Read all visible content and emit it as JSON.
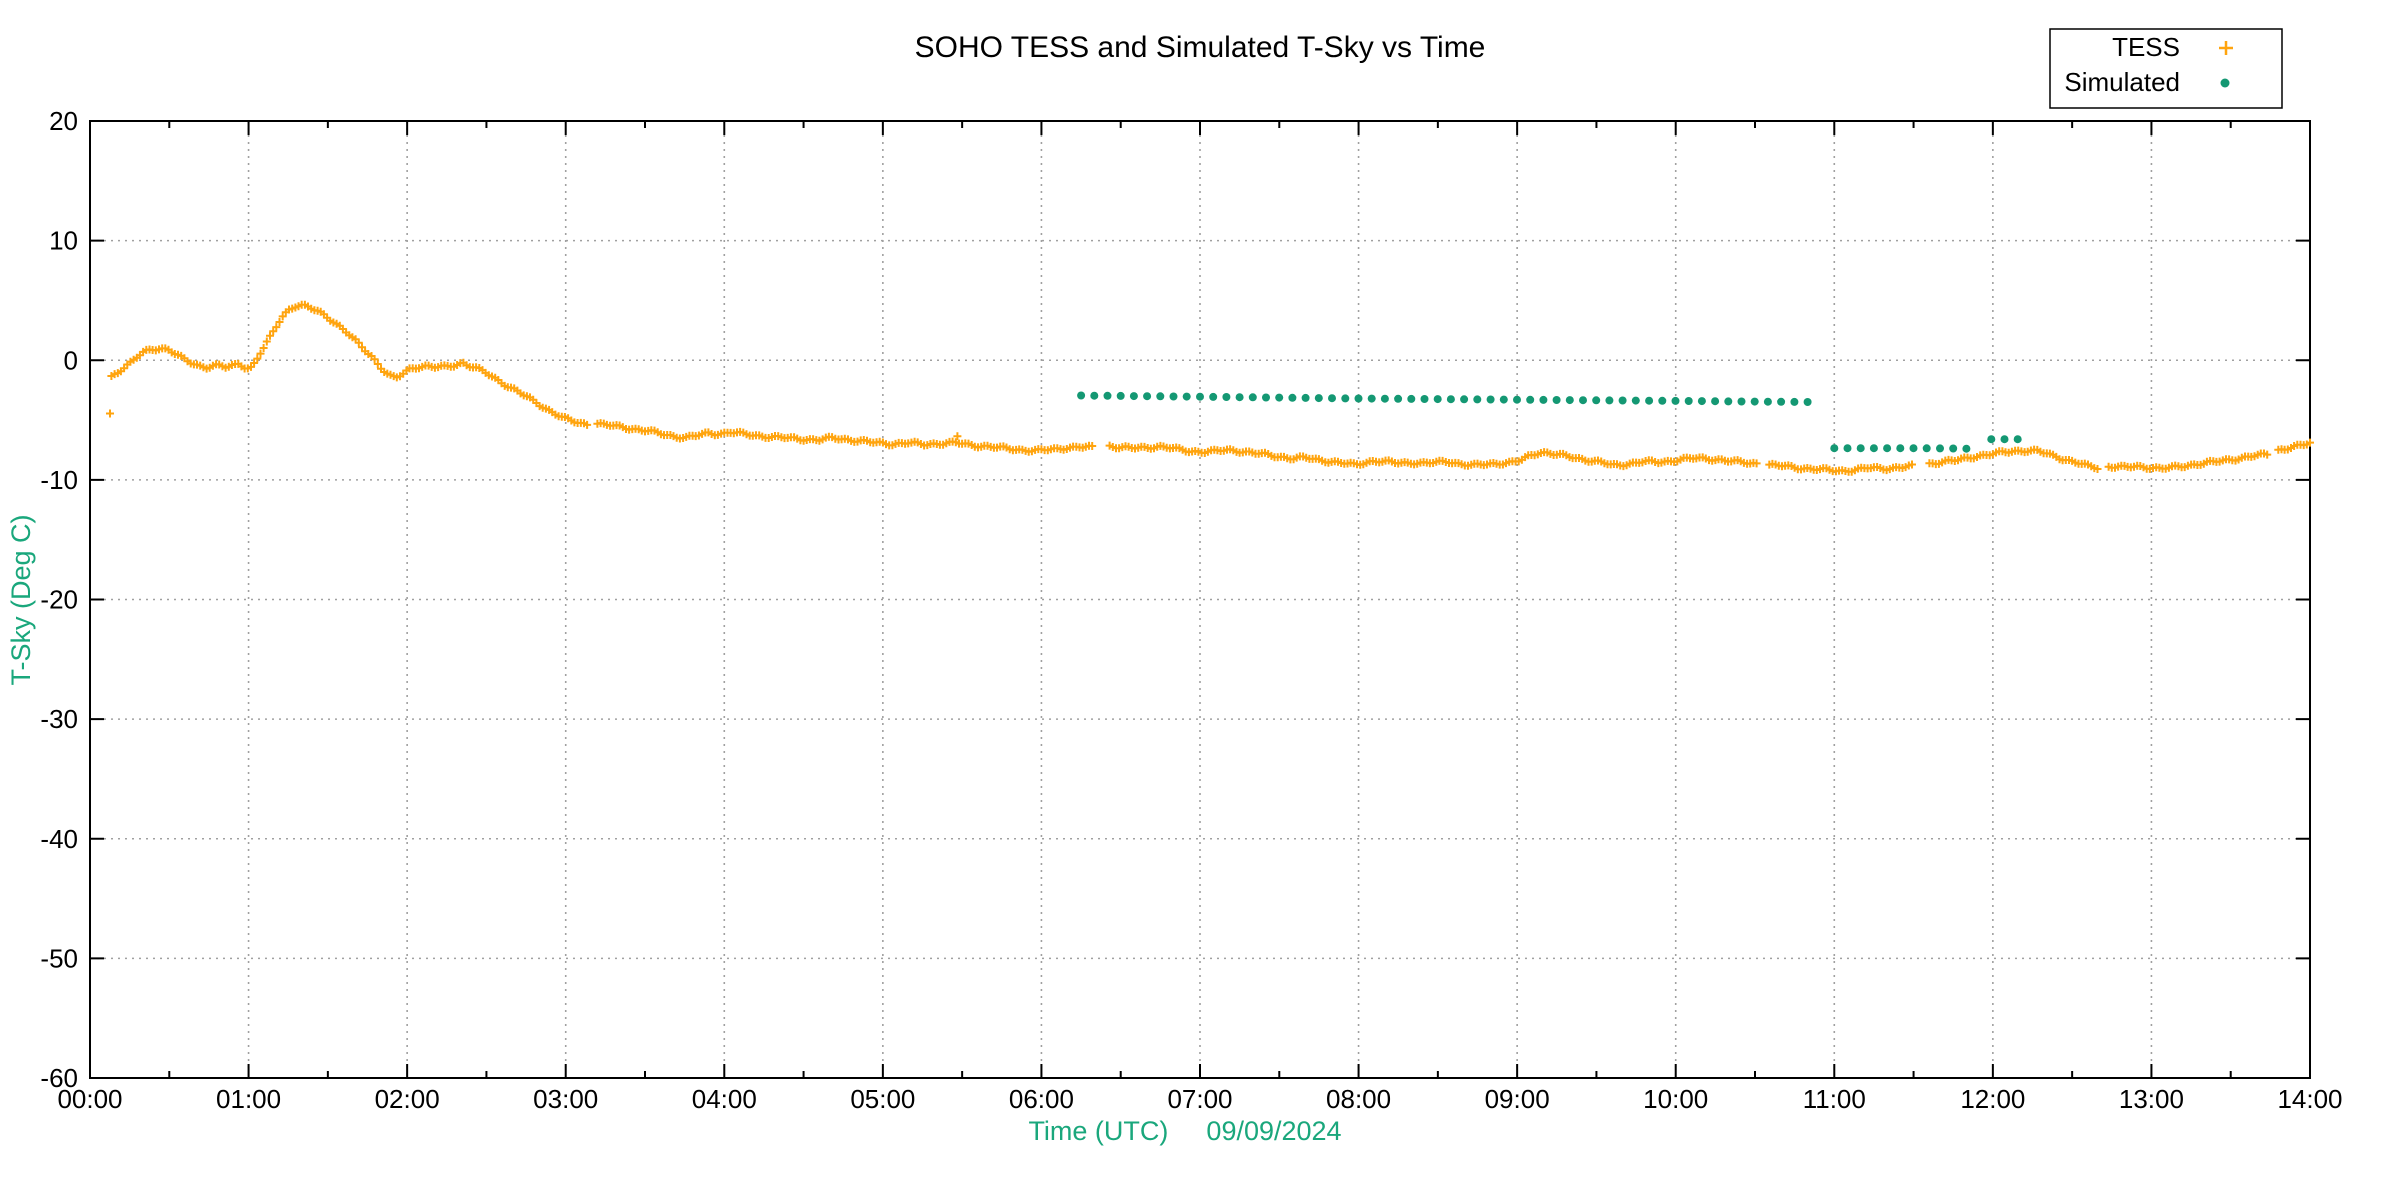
{
  "chart_data": {
    "type": "scatter",
    "title": "SOHO TESS and Simulated T-Sky vs Time",
    "xlabel": "Time (UTC)",
    "xlabel_date": "09/09/2024",
    "ylabel": "T-Sky (Deg C)",
    "xlim_hours": [
      0,
      14
    ],
    "ylim": [
      -60,
      20
    ],
    "x_tick_labels": [
      "00:00",
      "01:00",
      "02:00",
      "03:00",
      "04:00",
      "05:00",
      "06:00",
      "07:00",
      "08:00",
      "09:00",
      "10:00",
      "11:00",
      "12:00",
      "13:00",
      "14:00"
    ],
    "y_ticks": [
      20,
      10,
      0,
      -10,
      -20,
      -30,
      -40,
      -50,
      -60
    ],
    "x_minor_interval_hours": 0.5,
    "grid": true,
    "legend_position": "top-right",
    "colors": {
      "tess": "#ffa40e",
      "simulated": "#149873",
      "axis_label": "#1aa77c",
      "grid": "#a0a0a0",
      "border": "#000000"
    },
    "series": [
      {
        "name": "TESS",
        "marker": "plus",
        "color": "#ffa40e",
        "cadence_hours": 0.02,
        "outliers": [
          [
            0.126,
            -4.45
          ],
          [
            5.47,
            -6.35
          ]
        ],
        "segments": [
          [
            [
              0.135,
              -1.35
            ],
            [
              0.16,
              -1.1
            ],
            [
              0.19,
              -0.85
            ],
            [
              0.22,
              -0.6
            ],
            [
              0.26,
              -0.2
            ],
            [
              0.3,
              0.3
            ],
            [
              0.34,
              0.7
            ],
            [
              0.39,
              0.95
            ],
            [
              0.44,
              1.0
            ],
            [
              0.49,
              0.9
            ],
            [
              0.54,
              0.5
            ],
            [
              0.59,
              0.1
            ],
            [
              0.64,
              -0.2
            ],
            [
              0.69,
              -0.45
            ],
            [
              0.73,
              -0.6
            ],
            [
              0.77,
              -0.5
            ],
            [
              0.81,
              -0.45
            ],
            [
              0.86,
              -0.6
            ],
            [
              0.9,
              -0.45
            ],
            [
              0.94,
              -0.25
            ],
            [
              0.98,
              -0.6
            ],
            [
              1.01,
              -0.7
            ],
            [
              1.04,
              -0.2
            ],
            [
              1.07,
              0.5
            ],
            [
              1.1,
              1.1
            ],
            [
              1.13,
              1.8
            ],
            [
              1.16,
              2.5
            ],
            [
              1.19,
              3.2
            ],
            [
              1.22,
              3.8
            ],
            [
              1.26,
              4.3
            ],
            [
              1.3,
              4.55
            ],
            [
              1.34,
              4.55
            ],
            [
              1.38,
              4.4
            ],
            [
              1.42,
              4.2
            ],
            [
              1.46,
              3.95
            ],
            [
              1.5,
              3.6
            ],
            [
              1.54,
              3.2
            ],
            [
              1.58,
              2.75
            ],
            [
              1.62,
              2.3
            ],
            [
              1.66,
              1.8
            ],
            [
              1.7,
              1.3
            ],
            [
              1.74,
              0.8
            ],
            [
              1.78,
              0.3
            ],
            [
              1.81,
              -0.2
            ],
            [
              1.84,
              -0.7
            ],
            [
              1.87,
              -1.1
            ],
            [
              1.9,
              -1.4
            ],
            [
              1.93,
              -1.5
            ],
            [
              1.96,
              -1.25
            ],
            [
              1.99,
              -0.95
            ],
            [
              2.02,
              -0.7
            ],
            [
              2.06,
              -0.55
            ],
            [
              2.12,
              -0.5
            ],
            [
              2.18,
              -0.6
            ],
            [
              2.24,
              -0.55
            ],
            [
              2.3,
              -0.4
            ],
            [
              2.35,
              -0.2
            ],
            [
              2.39,
              -0.45
            ],
            [
              2.44,
              -0.7
            ],
            [
              2.49,
              -1.0
            ],
            [
              2.54,
              -1.4
            ],
            [
              2.59,
              -1.8
            ],
            [
              2.64,
              -2.2
            ],
            [
              2.69,
              -2.55
            ],
            [
              2.74,
              -2.95
            ],
            [
              2.79,
              -3.35
            ],
            [
              2.84,
              -3.75
            ],
            [
              2.89,
              -4.15
            ],
            [
              2.94,
              -4.5
            ],
            [
              2.99,
              -4.85
            ],
            [
              3.04,
              -5.1
            ],
            [
              3.09,
              -5.25
            ],
            [
              3.14,
              -5.4
            ]
          ],
          [
            [
              3.2,
              -5.3
            ],
            [
              3.28,
              -5.45
            ],
            [
              3.36,
              -5.6
            ],
            [
              3.44,
              -5.75
            ],
            [
              3.52,
              -5.9
            ],
            [
              3.6,
              -6.15
            ],
            [
              3.68,
              -6.35
            ],
            [
              3.76,
              -6.45
            ],
            [
              3.83,
              -6.3
            ],
            [
              3.9,
              -6.1
            ],
            [
              3.97,
              -6.15
            ],
            [
              4.04,
              -6.0
            ],
            [
              4.11,
              -6.15
            ],
            [
              4.2,
              -6.3
            ],
            [
              4.3,
              -6.4
            ],
            [
              4.4,
              -6.5
            ],
            [
              4.5,
              -6.6
            ],
            [
              4.6,
              -6.65
            ],
            [
              4.68,
              -6.5
            ],
            [
              4.76,
              -6.6
            ],
            [
              4.86,
              -6.75
            ],
            [
              4.96,
              -6.9
            ],
            [
              5.06,
              -7.0
            ],
            [
              5.16,
              -6.9
            ],
            [
              5.26,
              -7.05
            ],
            [
              5.36,
              -6.95
            ],
            [
              5.46,
              -6.9
            ],
            [
              5.56,
              -7.1
            ],
            [
              5.66,
              -7.2
            ],
            [
              5.76,
              -7.35
            ],
            [
              5.88,
              -7.5
            ],
            [
              5.98,
              -7.55
            ],
            [
              6.08,
              -7.45
            ],
            [
              6.16,
              -7.3
            ],
            [
              6.24,
              -7.25
            ],
            [
              6.32,
              -7.3
            ]
          ],
          [
            [
              6.43,
              -7.15
            ],
            [
              6.5,
              -7.3
            ],
            [
              6.58,
              -7.35
            ],
            [
              6.66,
              -7.3
            ],
            [
              6.74,
              -7.2
            ],
            [
              6.8,
              -7.3
            ],
            [
              6.86,
              -7.45
            ],
            [
              6.94,
              -7.6
            ],
            [
              7.02,
              -7.65
            ],
            [
              7.1,
              -7.6
            ],
            [
              7.18,
              -7.5
            ],
            [
              7.26,
              -7.6
            ],
            [
              7.34,
              -7.75
            ],
            [
              7.42,
              -7.9
            ],
            [
              7.5,
              -8.05
            ],
            [
              7.58,
              -8.2
            ],
            [
              7.66,
              -8.15
            ],
            [
              7.74,
              -8.3
            ],
            [
              7.82,
              -8.45
            ],
            [
              7.9,
              -8.6
            ],
            [
              7.98,
              -8.75
            ],
            [
              8.04,
              -8.55
            ],
            [
              8.1,
              -8.4
            ],
            [
              8.18,
              -8.5
            ],
            [
              8.26,
              -8.6
            ],
            [
              8.34,
              -8.55
            ],
            [
              8.42,
              -8.6
            ],
            [
              8.5,
              -8.55
            ],
            [
              8.56,
              -8.45
            ],
            [
              8.64,
              -8.65
            ],
            [
              8.72,
              -8.8
            ],
            [
              8.8,
              -8.7
            ],
            [
              8.88,
              -8.6
            ],
            [
              8.96,
              -8.55
            ],
            [
              9.02,
              -8.4
            ],
            [
              9.08,
              -8.0
            ],
            [
              9.14,
              -7.7
            ],
            [
              9.18,
              -7.7
            ],
            [
              9.24,
              -7.85
            ],
            [
              9.32,
              -8.05
            ],
            [
              9.4,
              -8.25
            ],
            [
              9.48,
              -8.4
            ],
            [
              9.54,
              -8.55
            ],
            [
              9.6,
              -8.8
            ],
            [
              9.66,
              -8.75
            ],
            [
              9.72,
              -8.6
            ],
            [
              9.8,
              -8.45
            ],
            [
              9.88,
              -8.55
            ],
            [
              9.96,
              -8.45
            ],
            [
              10.04,
              -8.25
            ],
            [
              10.12,
              -8.2
            ],
            [
              10.2,
              -8.25
            ],
            [
              10.28,
              -8.3
            ],
            [
              10.36,
              -8.45
            ],
            [
              10.46,
              -8.6
            ],
            [
              10.52,
              -8.65
            ]
          ],
          [
            [
              10.59,
              -8.75
            ],
            [
              10.68,
              -8.85
            ],
            [
              10.78,
              -9.0
            ],
            [
              10.88,
              -9.1
            ],
            [
              10.98,
              -9.2
            ],
            [
              11.06,
              -9.25
            ],
            [
              11.14,
              -9.15
            ],
            [
              11.22,
              -9.0
            ],
            [
              11.32,
              -9.05
            ],
            [
              11.42,
              -8.95
            ],
            [
              11.5,
              -8.85
            ]
          ],
          [
            [
              11.6,
              -8.65
            ],
            [
              11.68,
              -8.5
            ],
            [
              11.76,
              -8.4
            ],
            [
              11.83,
              -8.2
            ],
            [
              11.9,
              -8.0
            ],
            [
              11.97,
              -7.9
            ],
            [
              12.04,
              -7.75
            ],
            [
              12.12,
              -7.6
            ],
            [
              12.2,
              -7.55
            ],
            [
              12.28,
              -7.6
            ],
            [
              12.34,
              -7.8
            ],
            [
              12.4,
              -8.05
            ],
            [
              12.47,
              -8.35
            ],
            [
              12.54,
              -8.6
            ],
            [
              12.6,
              -8.85
            ],
            [
              12.66,
              -9.0
            ]
          ],
          [
            [
              12.73,
              -8.85
            ],
            [
              12.82,
              -8.95
            ],
            [
              12.91,
              -8.9
            ],
            [
              13.0,
              -8.95
            ],
            [
              13.06,
              -9.05
            ],
            [
              13.12,
              -9.0
            ],
            [
              13.2,
              -8.85
            ],
            [
              13.3,
              -8.65
            ],
            [
              13.4,
              -8.5
            ],
            [
              13.5,
              -8.3
            ],
            [
              13.6,
              -8.1
            ],
            [
              13.68,
              -7.95
            ],
            [
              13.74,
              -7.85
            ]
          ],
          [
            [
              13.8,
              -7.5
            ],
            [
              13.86,
              -7.35
            ],
            [
              13.92,
              -7.2
            ],
            [
              13.97,
              -7.05
            ],
            [
              14.0,
              -6.9
            ]
          ]
        ]
      },
      {
        "name": "Simulated",
        "marker": "dot",
        "color": "#149873",
        "cadence_hours": 0.0833,
        "outliers": [],
        "segments": [
          [
            [
              6.25,
              -2.95
            ],
            [
              7.0,
              -3.05
            ],
            [
              8.0,
              -3.2
            ],
            [
              9.0,
              -3.3
            ],
            [
              10.0,
              -3.4
            ],
            [
              10.91,
              -3.5
            ]
          ],
          [
            [
              11.0,
              -7.35
            ],
            [
              11.5,
              -7.35
            ],
            [
              11.9,
              -7.4
            ]
          ],
          [
            [
              11.99,
              -6.6
            ],
            [
              12.16,
              -6.6
            ]
          ]
        ]
      }
    ]
  }
}
